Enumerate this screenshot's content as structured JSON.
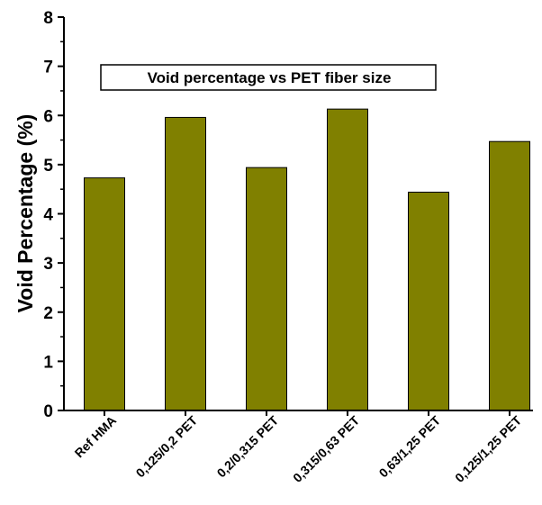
{
  "chart_data": {
    "type": "bar",
    "title": "Void percentage vs PET fiber size",
    "ylabel": "Void Percentage (%)",
    "xlabel": "",
    "categories": [
      "Ref HMA",
      "0,125/0,2 PET",
      "0,2/0,315 PET",
      "0,315/0,63 PET",
      "0,63/1,25 PET",
      "0,125/1,25 PET"
    ],
    "values": [
      4.73,
      5.96,
      4.94,
      6.13,
      4.44,
      5.47
    ],
    "ylim": [
      0,
      8
    ],
    "yticks": [
      "0",
      "1",
      "2",
      "3",
      "4",
      "5",
      "6",
      "7",
      "8"
    ],
    "grid": false,
    "legend": "none",
    "bar_color": "#808000",
    "bar_edge_color": "#000000"
  }
}
